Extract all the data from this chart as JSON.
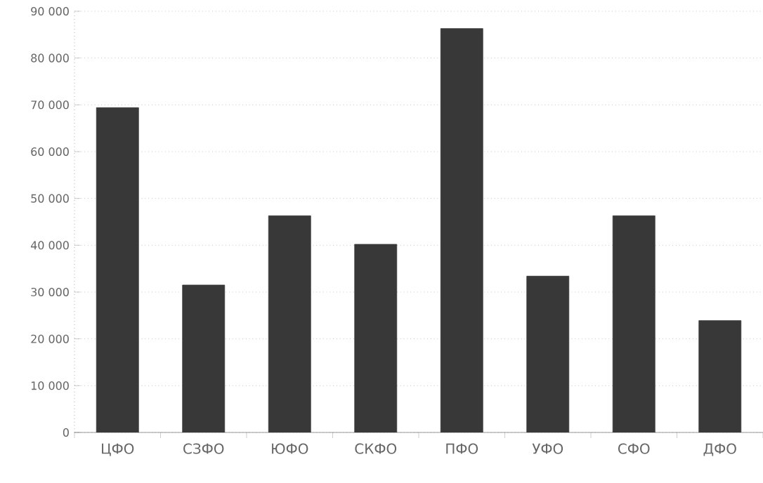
{
  "chart_data": {
    "type": "bar",
    "categories": [
      "ЦФО",
      "СЗФО",
      "ЮФО",
      "СКФО",
      "ПФО",
      "УФО",
      "СФО",
      "ДФО"
    ],
    "values": [
      69400,
      31500,
      46300,
      40200,
      86300,
      33400,
      46300,
      23900
    ],
    "color": "#383838",
    "ylim": [
      0,
      90000
    ],
    "yticks": [
      0,
      {
        "value": 10000,
        "label": "10 000"
      },
      {
        "value": 20000,
        "label": "20 000"
      },
      {
        "value": 30000,
        "label": "30 000"
      },
      {
        "value": 40000,
        "label": "40 000"
      },
      {
        "value": 50000,
        "label": "50 000"
      },
      {
        "value": 60000,
        "label": "60 000"
      },
      {
        "value": 70000,
        "label": "70 000"
      },
      {
        "value": 80000,
        "label": "80 000"
      },
      {
        "value": 90000,
        "label": "90 000"
      }
    ],
    "grid": "y"
  }
}
